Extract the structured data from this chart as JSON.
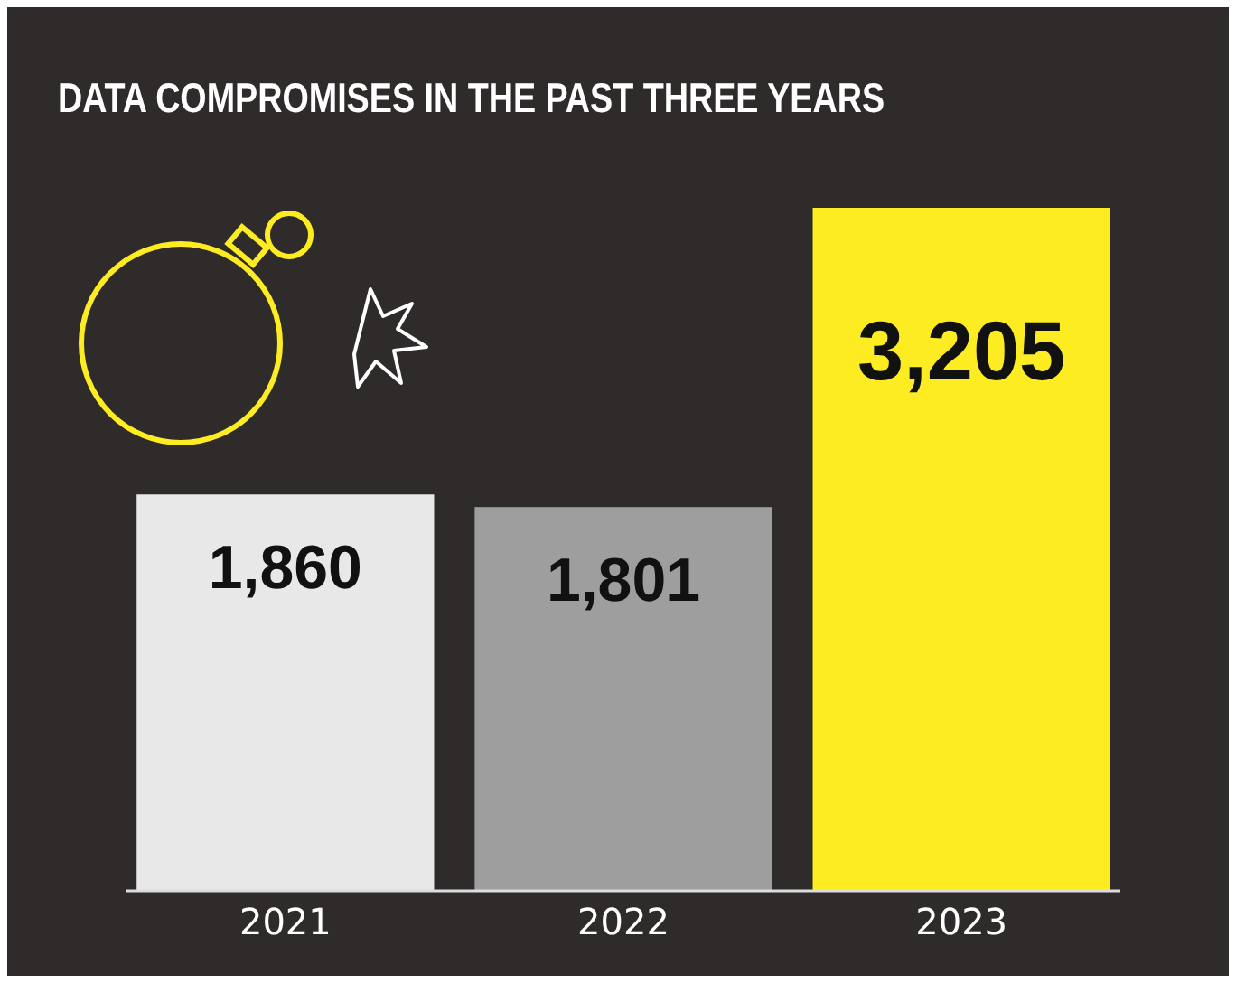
{
  "chart_data": {
    "type": "bar",
    "title": "DATA COMPROMISES IN THE PAST THREE YEARS",
    "categories": [
      "2021",
      "2022",
      "2023"
    ],
    "values": [
      1860,
      1801,
      3205
    ],
    "colors": [
      "#e8e8e8",
      "#9e9e9e",
      "#fcec21"
    ],
    "value_labels": [
      "1,860",
      "1,801",
      "3,205"
    ]
  }
}
